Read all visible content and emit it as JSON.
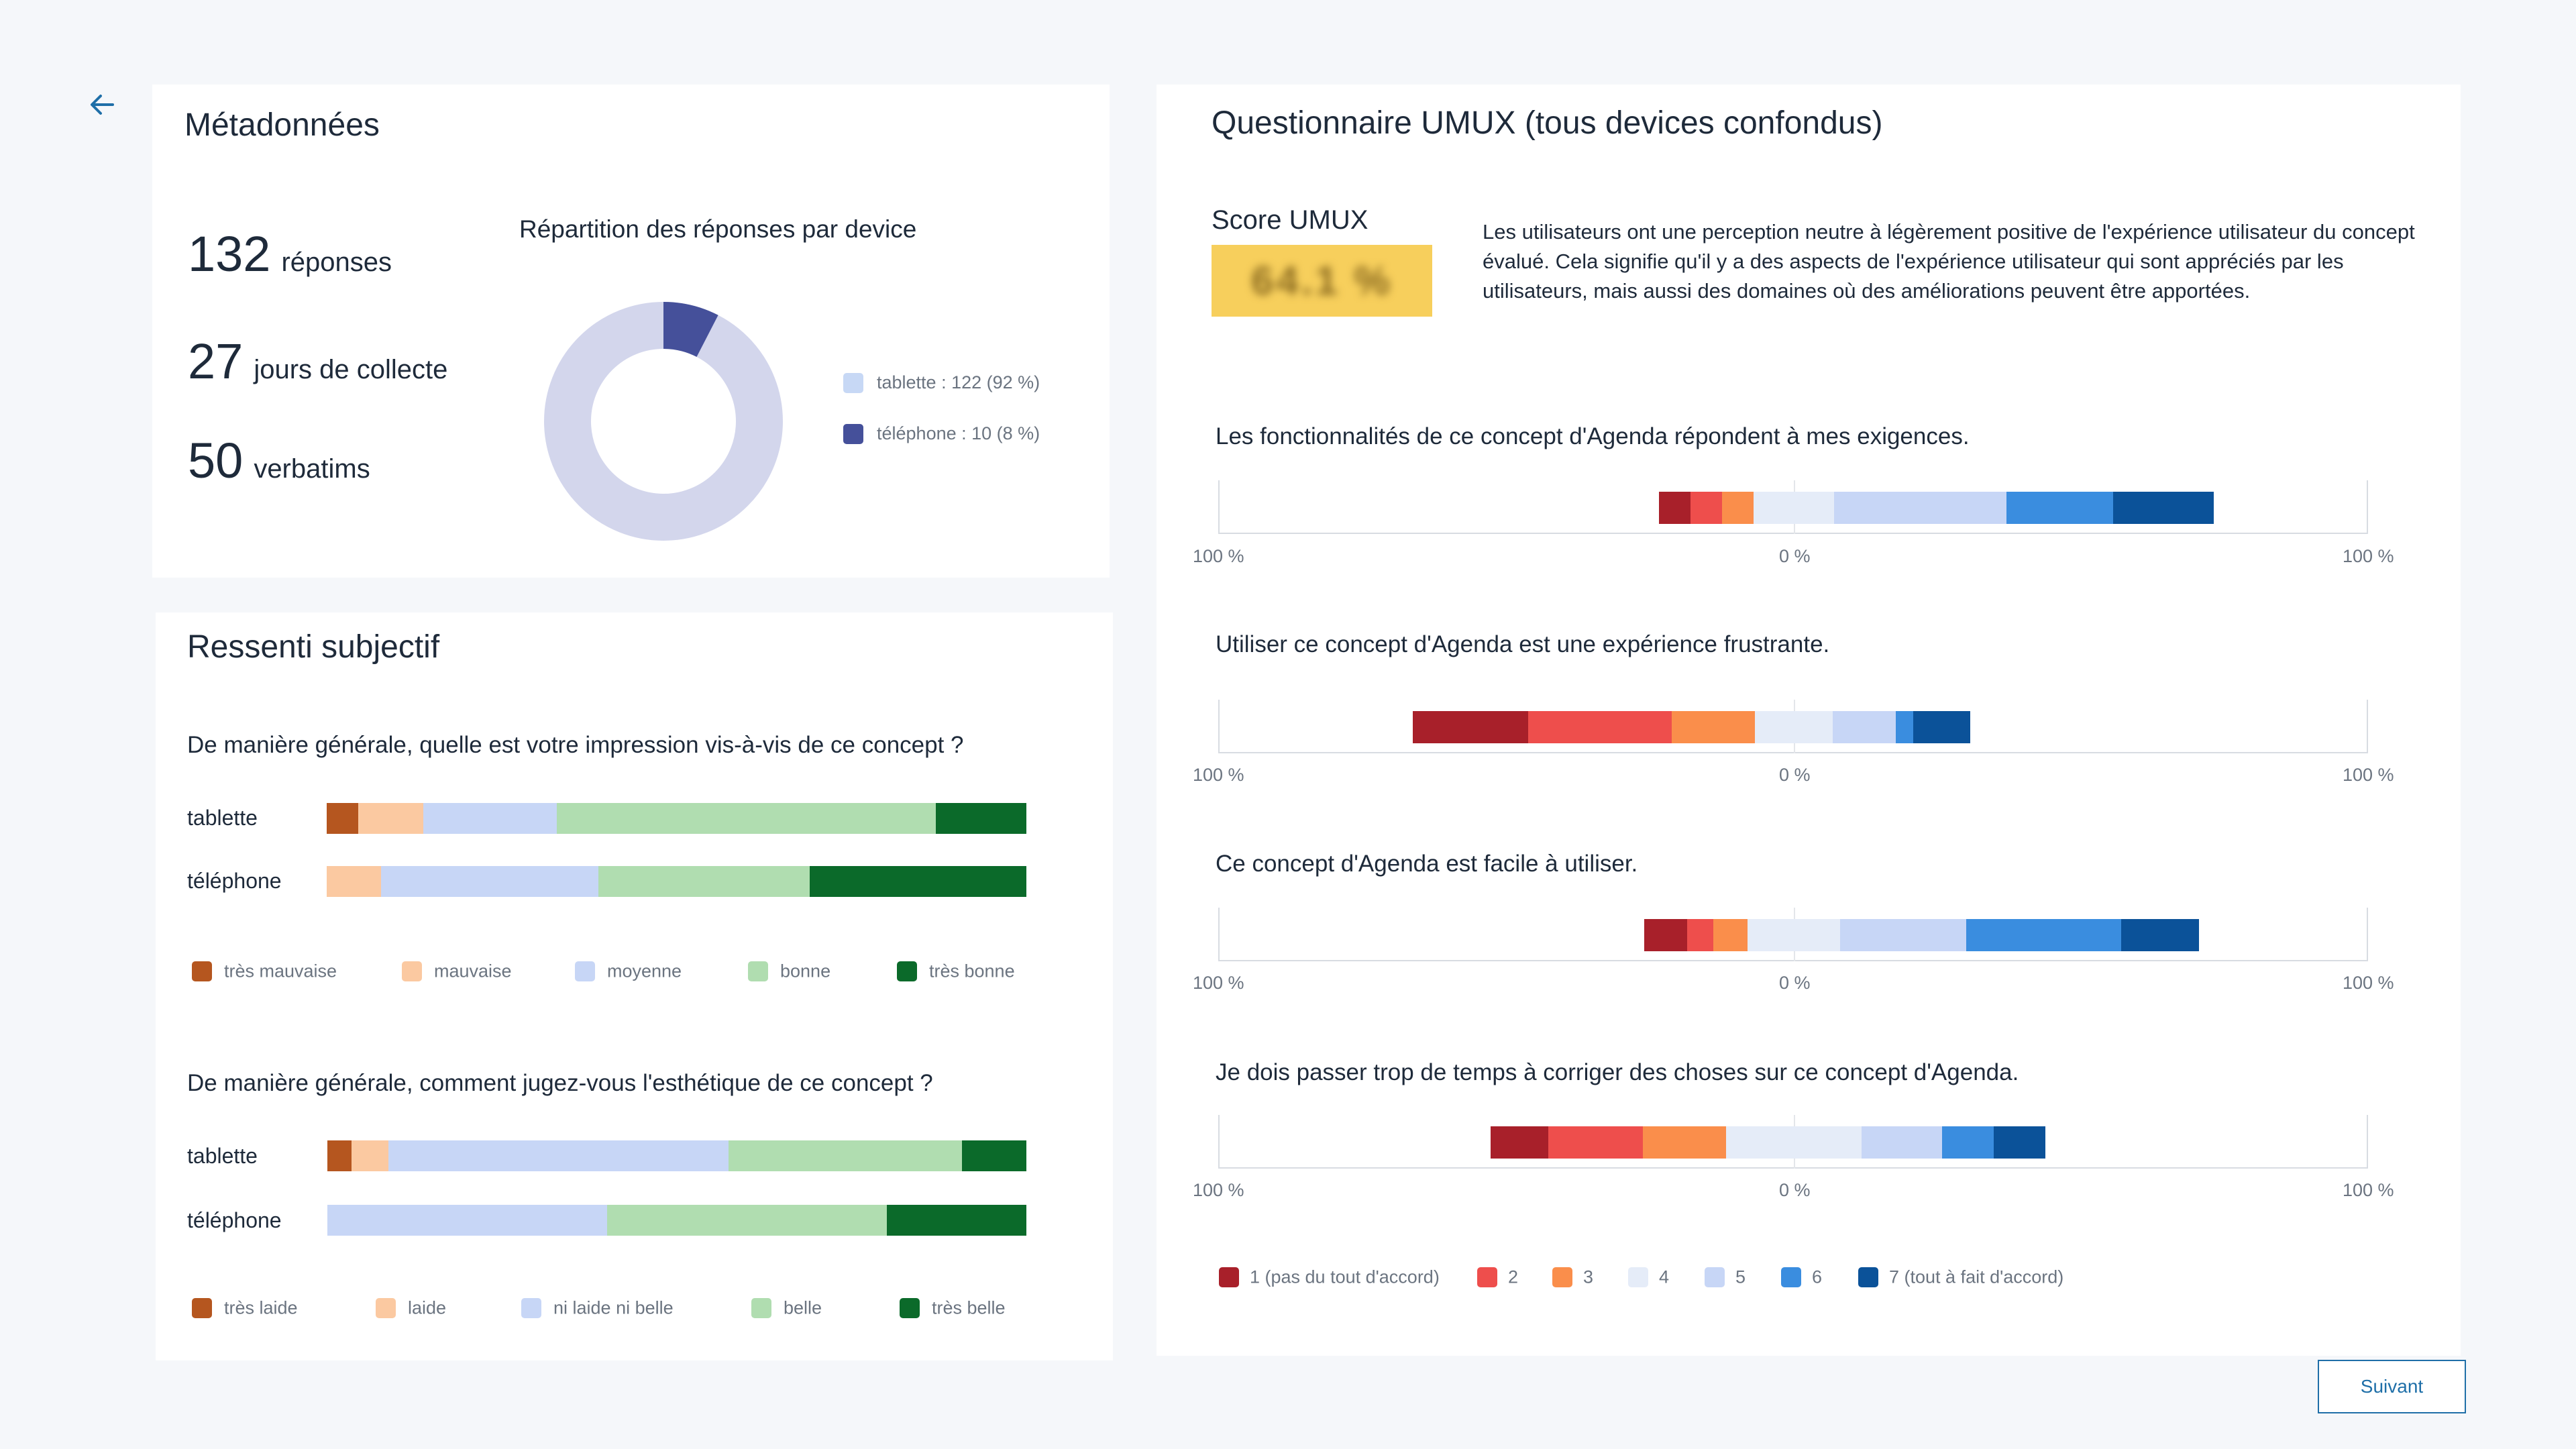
{
  "colors": {
    "tablette": "#c7d8f5",
    "telephone": "#45509a",
    "donut_bg": "#d3d6ec",
    "impression": [
      "#b5561f",
      "#fbc9a1",
      "#c7d6f6",
      "#b0ddb0",
      "#0b6a2a"
    ],
    "umux": [
      "#a8202a",
      "#ee4e4c",
      "#fa8e4b",
      "#e5ecf8",
      "#c7d6f6",
      "#3a8ddf",
      "#0b5299"
    ]
  },
  "nav": {
    "back_icon": "arrow-left-icon"
  },
  "meta": {
    "title": "Métadonnées",
    "stats": [
      {
        "value": "132",
        "label": "réponses"
      },
      {
        "value": "27",
        "label": "jours de collecte"
      },
      {
        "value": "50",
        "label": "verbatims"
      }
    ],
    "donut": {
      "title": "Répartition des réponses par device",
      "segments": [
        {
          "name": "tablette",
          "value": 122,
          "label": "tablette : 122 (92 %)"
        },
        {
          "name": "téléphone",
          "value": 10,
          "label": "téléphone : 10 (8 %)"
        }
      ]
    }
  },
  "ressenti": {
    "title": "Ressenti subjectif",
    "questions": [
      {
        "text": "De manière générale, quelle est votre impression vis-à-vis de ce concept ?",
        "rows": [
          {
            "label": "tablette",
            "values": [
              4.5,
              9.3,
              19.1,
              54.2,
              12.9
            ]
          },
          {
            "label": "téléphone",
            "values": [
              0,
              7.8,
              31.0,
              30.2,
              31.0
            ]
          }
        ],
        "legend": [
          "très mauvaise",
          "mauvaise",
          "moyenne",
          "bonne",
          "très bonne"
        ]
      },
      {
        "text": "De manière générale, comment jugez-vous l'esthétique de ce concept ?",
        "rows": [
          {
            "label": "tablette",
            "values": [
              3.5,
              5.2,
              48.7,
              33.4,
              9.2
            ]
          },
          {
            "label": "téléphone",
            "values": [
              0,
              0,
              40.0,
              40.0,
              20.0
            ]
          }
        ],
        "legend": [
          "très laide",
          "laide",
          "ni laide ni belle",
          "belle",
          "très belle"
        ]
      }
    ]
  },
  "umux": {
    "title": "Questionnaire UMUX (tous devices confondus)",
    "score_title": "Score UMUX",
    "score_value": "64.1 %",
    "description": "Les utilisateurs ont une perception neutre à légèrement positive de l'expérience utilisateur du concept évalué. Cela signifie qu'il y a des aspects de l'expérience utilisateur qui sont appréciés par les utilisateurs, mais aussi des domaines où des améliorations peuvent être apportées.",
    "tick_left": "100 %",
    "tick_mid": "0 %",
    "tick_right": "100 %",
    "legend": [
      "1 (pas du tout d'accord)",
      "2",
      "3",
      "4",
      "5",
      "6",
      "7 (tout à fait d'accord)"
    ],
    "questions": [
      {
        "text": "Les fonctionnalités de ce concept d'Agenda répondent à mes exigences.",
        "values": [
          5.5,
          5.5,
          5.5,
          14.0,
          30.0,
          18.5,
          17.5
        ]
      },
      {
        "text": "Utiliser ce concept d'Agenda est une expérience frustrante.",
        "values": [
          20.0,
          25.0,
          14.5,
          13.5,
          11.0,
          3.0,
          10.0
        ]
      },
      {
        "text": "Ce concept d'Agenda est facile à utiliser.",
        "values": [
          7.5,
          4.5,
          6.0,
          16.0,
          22.0,
          27.0,
          13.5
        ]
      },
      {
        "text": "Je dois passer trop de temps à corriger des choses sur ce concept d'Agenda.",
        "values": [
          10.0,
          16.5,
          14.5,
          23.5,
          14.0,
          9.0,
          9.0
        ]
      }
    ]
  },
  "footer": {
    "next_label": "Suivant"
  }
}
